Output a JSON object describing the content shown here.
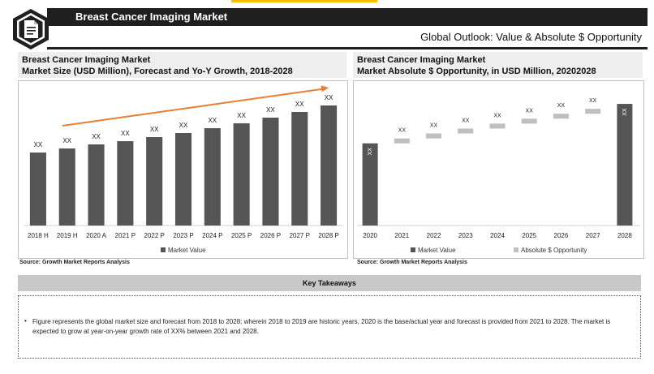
{
  "header": {
    "title": "Breast Cancer Imaging Market",
    "subtitle": "Global Outlook: Value & Absolute $ Opportunity",
    "logo_icon": "document-icon"
  },
  "left_panel": {
    "title_line1": "Breast Cancer Imaging Market",
    "title_line2": "Market Size (USD Million), Forecast and Yo-Y Growth, 2018-2028",
    "source": "Source: Growth Market Reports Analysis"
  },
  "right_panel": {
    "title_line1": "Breast Cancer Imaging Market",
    "title_line2": "Market Absolute $ Opportunity, in USD Million, 20202028",
    "source": "Source: Growth Market Reports Analysis"
  },
  "key_takeaways": {
    "title": "Key Takeaways",
    "bullet": "Figure represents the global market size and forecast from 2018 to 2028; wherein 2018 to 2019 are historic years, 2020 is the base/actual year and forecast is provided from 2021 to 2028. The market is expected to grow at year-on-year growth rate of XX% between 2021 and 2028."
  },
  "chart_data": [
    {
      "type": "bar",
      "categories": [
        "2018 H",
        "2019 H",
        "2020 A",
        "2021 P",
        "2022 P",
        "2023 P",
        "2024 P",
        "2025 P",
        "2026 P",
        "2027 P",
        "2028 P"
      ],
      "series": [
        {
          "name": "Market Value",
          "values": [
            90,
            95,
            100,
            104,
            109,
            114,
            120,
            126,
            133,
            140,
            148
          ],
          "labels": [
            "XX",
            "XX",
            "XX",
            "XX",
            "XX",
            "XX",
            "XX",
            "XX",
            "XX",
            "XX",
            "XX"
          ]
        }
      ],
      "ylim": [
        0,
        170
      ],
      "trend_arrow": true,
      "legend": "bottom",
      "colors": {
        "bar": "#555555",
        "arrow": "#ed7d31"
      }
    },
    {
      "type": "bar",
      "chart_subtype": "waterfall",
      "categories": [
        "2020",
        "2021",
        "2022",
        "2023",
        "2024",
        "2025",
        "2026",
        "2027",
        "2028"
      ],
      "start_value": 100,
      "increments": [
        6,
        6,
        6,
        6,
        6,
        6,
        6,
        6
      ],
      "end_value": 148,
      "labels": [
        "XX",
        "XX",
        "XX",
        "XX",
        "XX",
        "XX",
        "XX",
        "XX",
        "XX"
      ],
      "series": [
        {
          "name": "Market Value"
        },
        {
          "name": "Absolute $ Opportunity"
        }
      ],
      "ylim": [
        0,
        152
      ],
      "legend": "bottom",
      "colors": {
        "value": "#555555",
        "opportunity": "#bfbfbf"
      }
    }
  ]
}
